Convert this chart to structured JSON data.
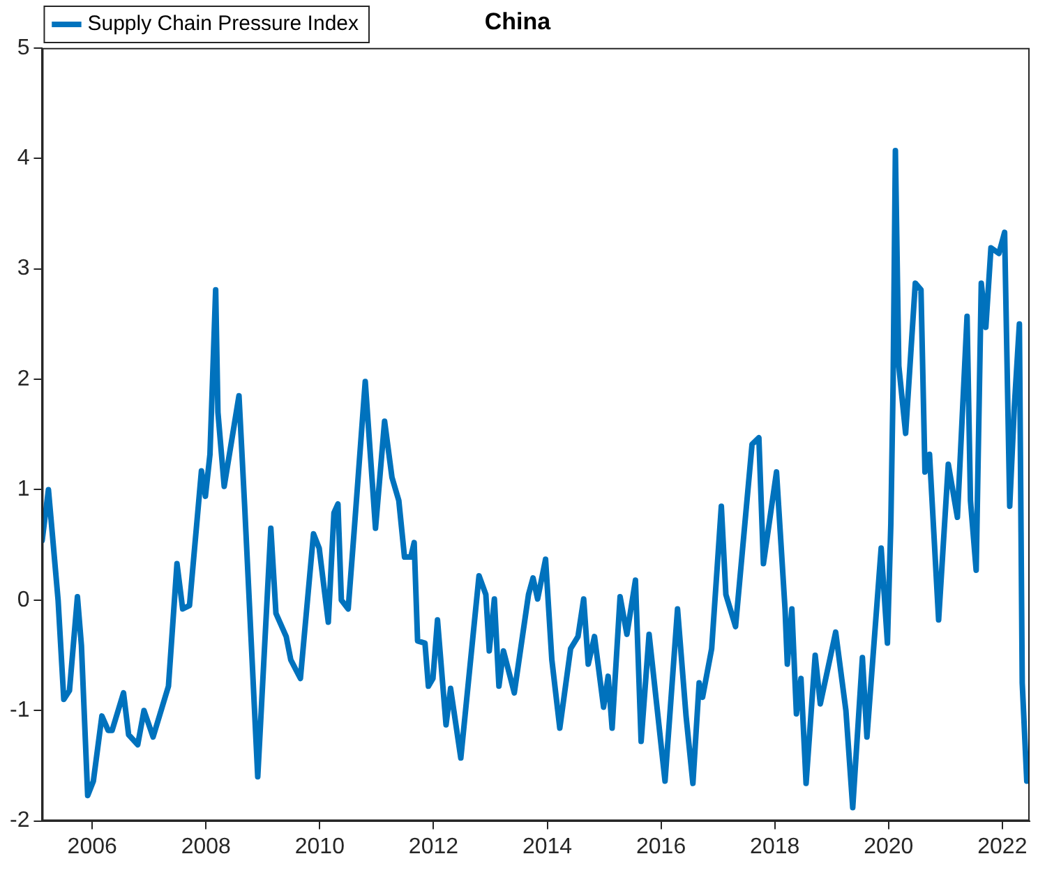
{
  "chart_data": {
    "type": "line",
    "title": "China",
    "legend": "top left",
    "line_style": "solid",
    "marker": "none",
    "grid": false,
    "xlim": [
      2005.12,
      2022.48
    ],
    "xticks": [
      2006,
      2008,
      2010,
      2012,
      2014,
      2016,
      2018,
      2020,
      2022
    ],
    "ylim": [
      -2,
      5
    ],
    "yticks": [
      -2,
      -1,
      0,
      1,
      2,
      3,
      4,
      5
    ],
    "x": [
      2005.12,
      2005.23,
      2005.29,
      2005.4,
      2005.5,
      2005.6,
      2005.74,
      2005.81,
      2005.92,
      2006.02,
      2006.17,
      2006.28,
      2006.35,
      2006.55,
      2006.64,
      2006.8,
      2006.91,
      2007.07,
      2007.34,
      2007.49,
      2007.59,
      2007.71,
      2007.92,
      2007.99,
      2008.07,
      2008.17,
      2008.21,
      2008.32,
      2008.58,
      2008.68,
      2008.91,
      2009.14,
      2009.23,
      2009.41,
      2009.49,
      2009.66,
      2009.89,
      2009.99,
      2010.15,
      2010.25,
      2010.32,
      2010.38,
      2010.5,
      2010.61,
      2010.8,
      2010.98,
      2011.14,
      2011.27,
      2011.39,
      2011.49,
      2011.6,
      2011.66,
      2011.72,
      2011.85,
      2011.91,
      2011.99,
      2012.07,
      2012.22,
      2012.3,
      2012.48,
      2012.8,
      2012.92,
      2012.98,
      2013.07,
      2013.15,
      2013.23,
      2013.42,
      2013.67,
      2013.75,
      2013.83,
      2013.97,
      2014.08,
      2014.22,
      2014.41,
      2014.54,
      2014.64,
      2014.72,
      2014.83,
      2014.99,
      2015.07,
      2015.14,
      2015.28,
      2015.4,
      2015.55,
      2015.65,
      2015.79,
      2016.07,
      2016.29,
      2016.44,
      2016.56,
      2016.67,
      2016.73,
      2016.89,
      2017.06,
      2017.14,
      2017.31,
      2017.6,
      2017.72,
      2017.8,
      2018.03,
      2018.18,
      2018.22,
      2018.3,
      2018.38,
      2018.46,
      2018.55,
      2018.71,
      2018.8,
      2019.07,
      2019.25,
      2019.37,
      2019.54,
      2019.62,
      2019.87,
      2019.98,
      2020.04,
      2020.08,
      2020.12,
      2020.18,
      2020.3,
      2020.47,
      2020.57,
      2020.64,
      2020.72,
      2020.88,
      2021.05,
      2021.21,
      2021.38,
      2021.44,
      2021.54,
      2021.63,
      2021.71,
      2021.8,
      2021.94,
      2022.04,
      2022.13,
      2022.21,
      2022.3,
      2022.35,
      2022.43
    ],
    "series": [
      {
        "name": "Supply Chain Pressure Index",
        "color": "#0072bd",
        "values": [
          0.54,
          1.0,
          0.65,
          0.0,
          -0.9,
          -0.82,
          0.03,
          -0.41,
          -1.77,
          -1.64,
          -1.05,
          -1.18,
          -1.18,
          -0.84,
          -1.22,
          -1.31,
          -1.0,
          -1.24,
          -0.78,
          0.33,
          -0.08,
          -0.05,
          1.17,
          0.94,
          1.32,
          2.81,
          1.7,
          1.03,
          1.85,
          0.85,
          -1.6,
          0.65,
          -0.12,
          -0.33,
          -0.54,
          -0.71,
          0.6,
          0.47,
          -0.2,
          0.79,
          0.87,
          0.0,
          -0.08,
          0.66,
          1.98,
          0.65,
          1.62,
          1.11,
          0.9,
          0.39,
          0.39,
          0.52,
          -0.37,
          -0.39,
          -0.78,
          -0.71,
          -0.18,
          -1.13,
          -0.8,
          -1.43,
          0.22,
          0.05,
          -0.46,
          0.01,
          -0.78,
          -0.46,
          -0.84,
          0.05,
          0.2,
          0.01,
          0.37,
          -0.54,
          -1.16,
          -0.44,
          -0.33,
          0.01,
          -0.58,
          -0.33,
          -0.97,
          -0.69,
          -1.16,
          0.03,
          -0.31,
          0.18,
          -1.28,
          -0.31,
          -1.64,
          -0.08,
          -1.05,
          -1.66,
          -0.75,
          -0.88,
          -0.44,
          0.85,
          0.05,
          -0.24,
          1.41,
          1.47,
          0.33,
          1.16,
          -0.08,
          -0.58,
          -0.08,
          -1.03,
          -0.71,
          -1.66,
          -0.5,
          -0.94,
          -0.29,
          -1.0,
          -1.88,
          -0.52,
          -1.24,
          0.47,
          -0.39,
          0.69,
          1.96,
          4.07,
          2.12,
          1.51,
          2.87,
          2.81,
          1.16,
          1.32,
          -0.18,
          1.23,
          0.75,
          2.57,
          0.9,
          0.27,
          2.87,
          2.47,
          3.19,
          3.14,
          3.33,
          0.85,
          1.74,
          2.5,
          -0.75,
          -1.64
        ]
      }
    ]
  }
}
